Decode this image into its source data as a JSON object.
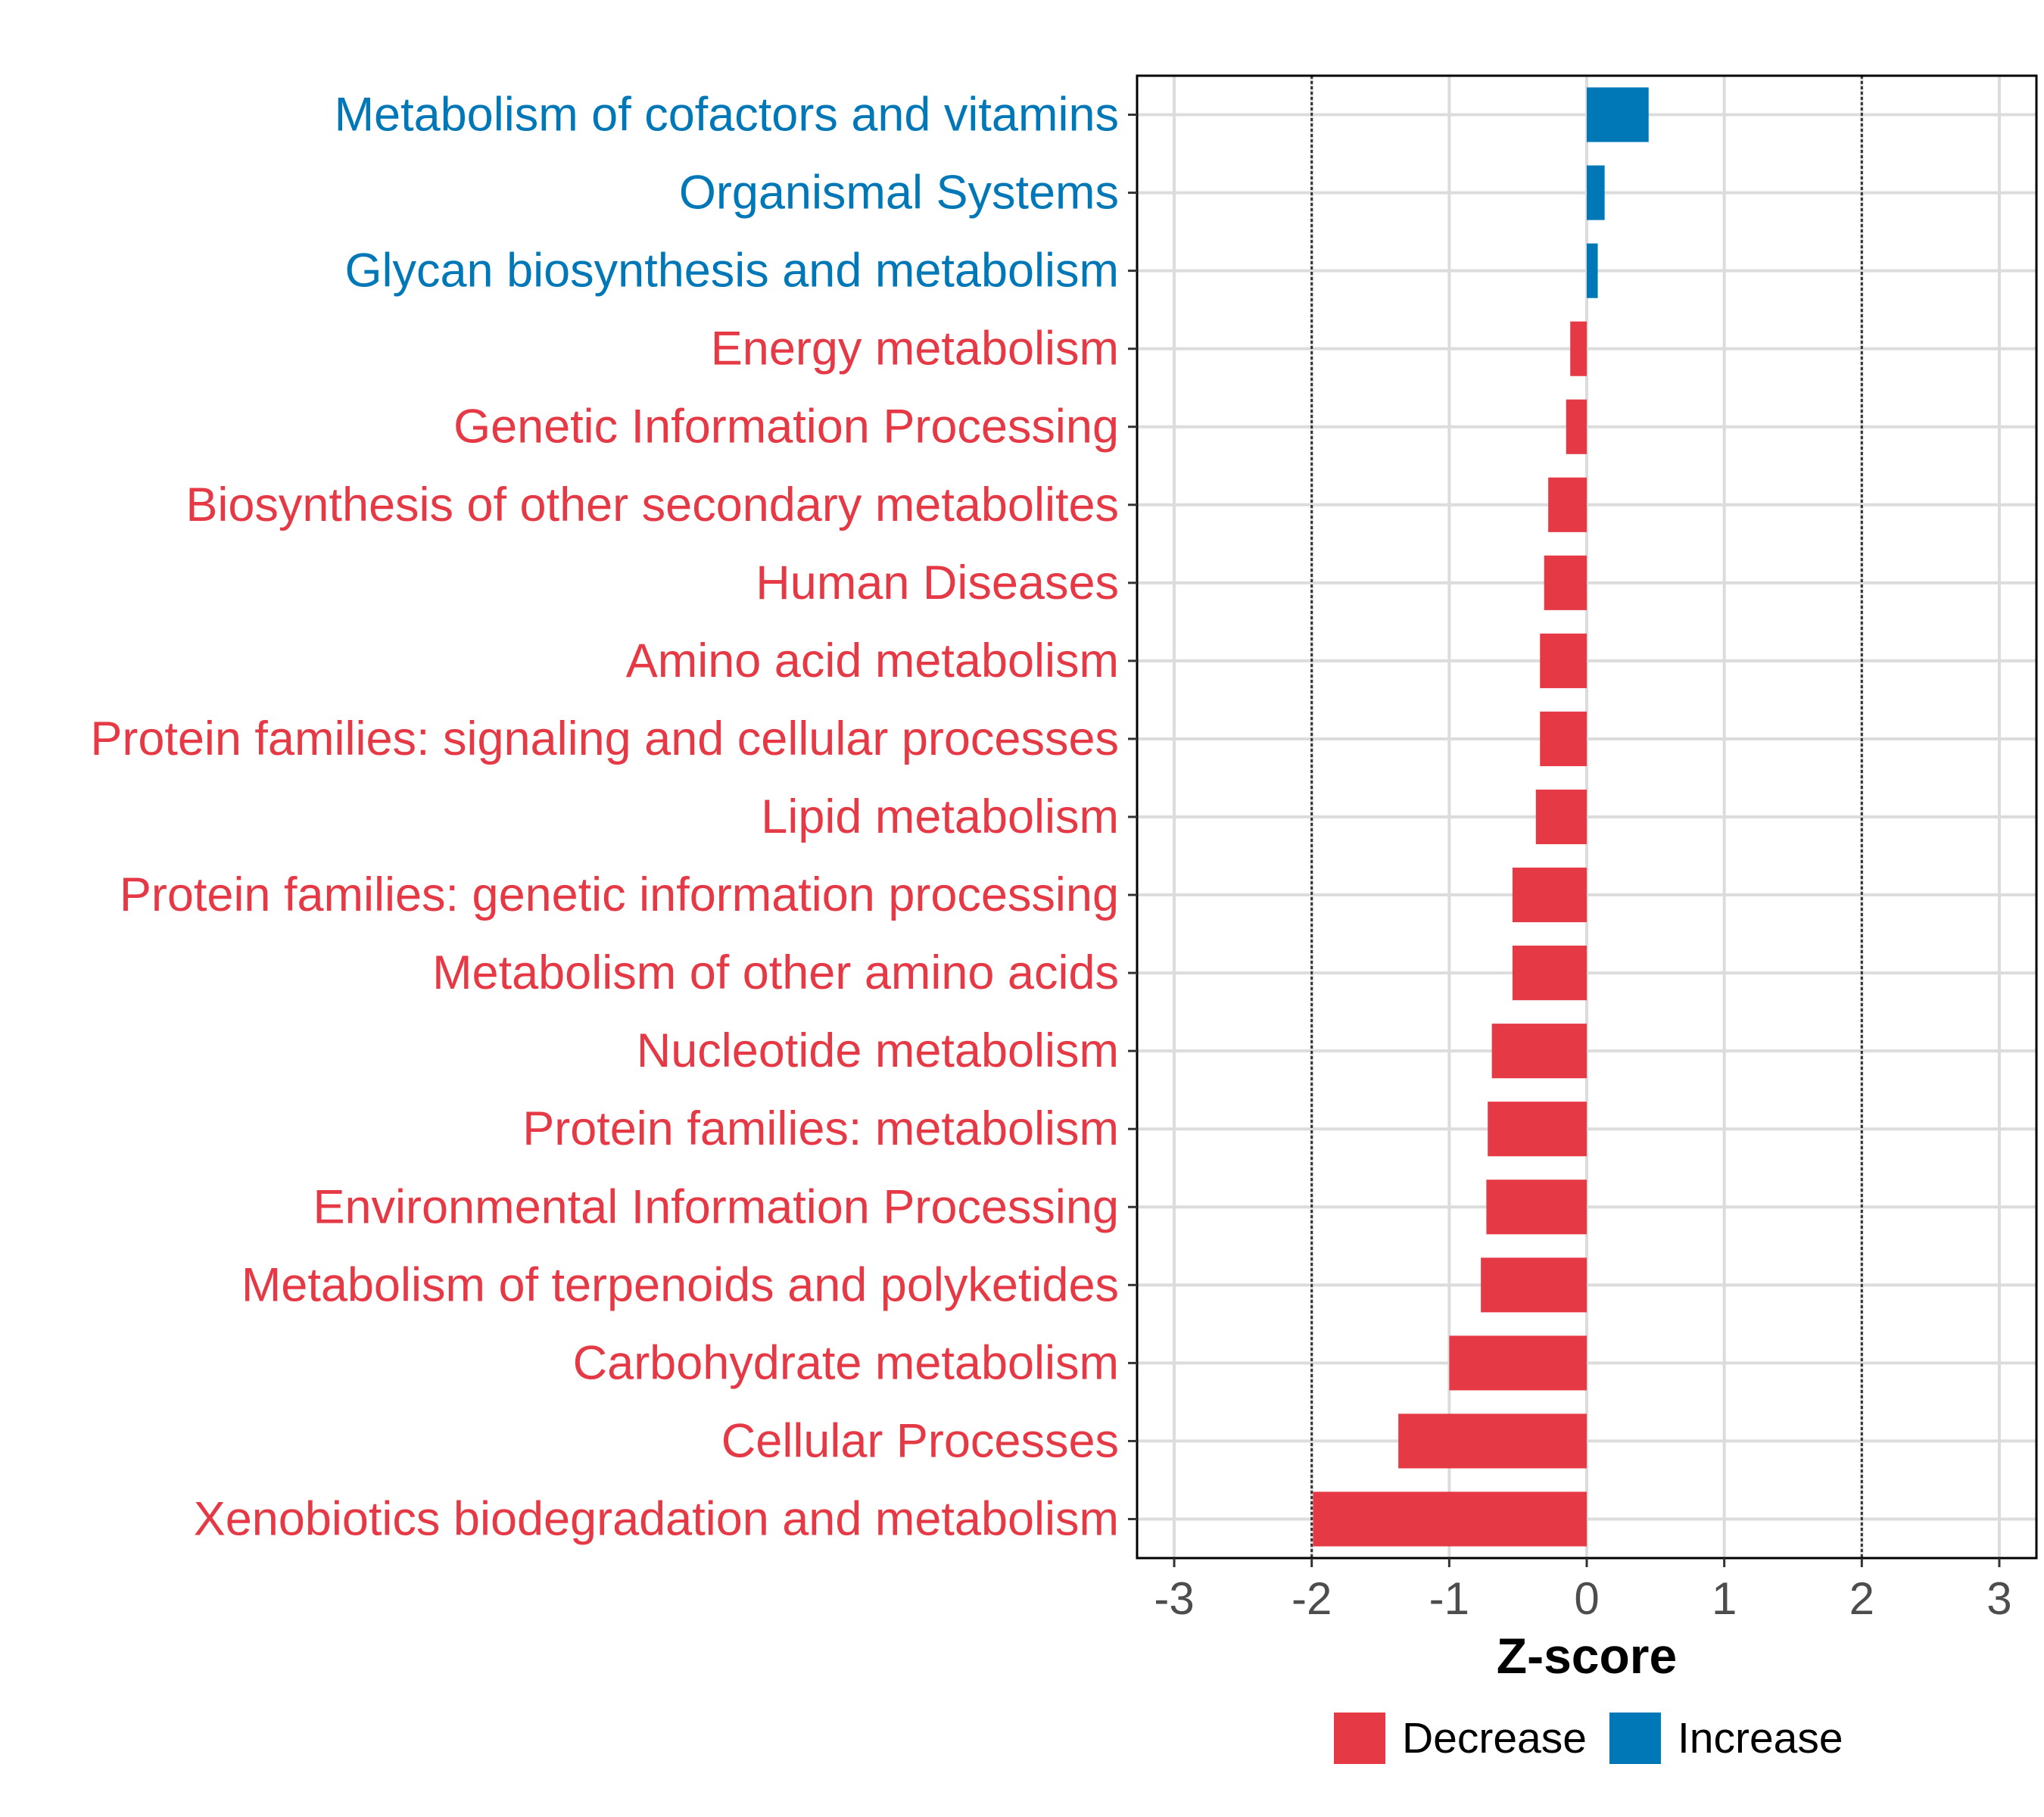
{
  "chart_data": {
    "type": "bar",
    "orientation": "horizontal",
    "xlabel": "Z-score",
    "ylabel": "",
    "xlim": [
      -3.27,
      3.27
    ],
    "xticks": [
      -3,
      -2,
      -1,
      0,
      1,
      2,
      3
    ],
    "tick_labels": [
      "-3",
      "-2",
      "-1",
      "0",
      "1",
      "2",
      "3"
    ],
    "reference_lines": [
      -2,
      2
    ],
    "grid": true,
    "categories": [
      "Metabolism of cofactors and vitamins",
      "Organismal Systems",
      "Glycan biosynthesis and metabolism",
      "Energy metabolism",
      "Genetic Information Processing",
      "Biosynthesis of other secondary metabolites",
      "Human Diseases",
      "Amino acid metabolism",
      "Protein families: signaling and cellular processes",
      "Lipid metabolism",
      "Protein families: genetic information processing",
      "Metabolism of other amino acids",
      "Nucleotide metabolism",
      "Protein families: metabolism",
      "Environmental Information Processing",
      "Metabolism of terpenoids and polyketides",
      "Carbohydrate metabolism",
      "Cellular Processes",
      "Xenobiotics biodegradation and metabolism"
    ],
    "values": [
      0.45,
      0.13,
      0.08,
      -0.12,
      -0.15,
      -0.28,
      -0.31,
      -0.34,
      -0.34,
      -0.37,
      -0.54,
      -0.54,
      -0.69,
      -0.72,
      -0.73,
      -0.77,
      -1.0,
      -1.37,
      -1.99
    ],
    "groups": [
      "Increase",
      "Increase",
      "Increase",
      "Decrease",
      "Decrease",
      "Decrease",
      "Decrease",
      "Decrease",
      "Decrease",
      "Decrease",
      "Decrease",
      "Decrease",
      "Decrease",
      "Decrease",
      "Decrease",
      "Decrease",
      "Decrease",
      "Decrease",
      "Decrease"
    ],
    "legend": [
      {
        "name": "Decrease",
        "color": "#E63946"
      },
      {
        "name": "Increase",
        "color": "#0077B6"
      }
    ],
    "legend_position": "bottom"
  }
}
